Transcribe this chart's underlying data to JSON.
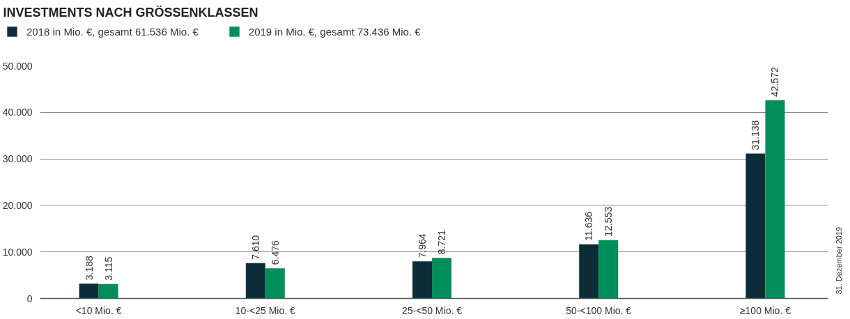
{
  "chart_data": {
    "type": "bar",
    "title": "INVESTMENTS NACH GRÖSSENKLASSEN",
    "categories": [
      "<10 Mio. €",
      "10-<25 Mio. €",
      "25-<50 Mio. €",
      "50-<100 Mio. €",
      "≥100 Mio. €"
    ],
    "series": [
      {
        "name": "2018 in Mio. €, gesamt 61.536 Mio. €",
        "color": "#0b2d38",
        "values": [
          3188,
          7610,
          7964,
          11636,
          31138
        ],
        "value_labels": [
          "3.188",
          "7.610",
          "7.964",
          "11.636",
          "31.138"
        ]
      },
      {
        "name": "2019 in Mio. €, gesamt 73.436 Mio. €",
        "color": "#008f5b",
        "values": [
          3115,
          6476,
          8721,
          12553,
          42572
        ],
        "value_labels": [
          "3.115",
          "6.476",
          "8.721",
          "12.553",
          "42.572"
        ]
      }
    ],
    "ylim": [
      0,
      50000
    ],
    "yticks": [
      0,
      {
        "value": 10000,
        "label": "10.000"
      },
      {
        "value": 20000,
        "label": "20.000"
      },
      {
        "value": 30000,
        "label": "30.000"
      },
      {
        "value": 40000,
        "label": "40.000"
      },
      {
        "value": 50000,
        "label": "50.000"
      }
    ],
    "grid": "y",
    "legend": "top left",
    "annotations": [
      "31. Dezember 2019"
    ]
  }
}
